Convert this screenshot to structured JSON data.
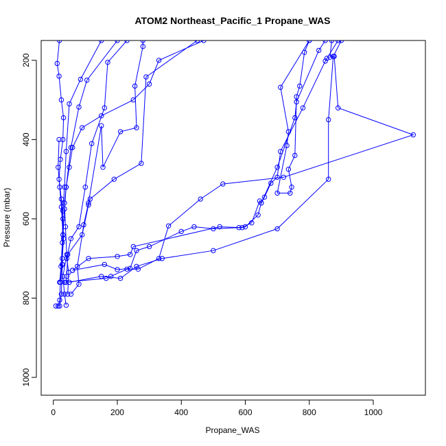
{
  "chart_data": {
    "type": "line",
    "title": "ATOM2 Northeast_Pacific_1 Propane_WAS",
    "xlabel": "Propane_WAS",
    "ylabel": "Pressure (mbar)",
    "xlim": [
      -38,
      1163
    ],
    "ylim": [
      1045,
      150
    ],
    "y_axis_inverted": true,
    "xticks": [
      0,
      200,
      400,
      600,
      800,
      1000
    ],
    "yticks": [
      200,
      400,
      600,
      800,
      1000
    ],
    "grid": false,
    "legend": "none",
    "color": "#0000ff",
    "marker": "open-circle",
    "series": [
      {
        "values": [
          [
            19,
            150
          ],
          [
            12,
            208
          ],
          [
            18,
            240
          ],
          [
            25,
            300
          ],
          [
            32,
            345
          ],
          [
            30,
            400
          ],
          [
            22,
            450
          ],
          [
            18,
            500
          ],
          [
            25,
            550
          ],
          [
            30,
            600
          ],
          [
            32,
            650
          ],
          [
            28,
            700
          ],
          [
            22,
            760
          ],
          [
            20,
            805
          ],
          [
            15,
            820
          ]
        ]
      },
      {
        "values": [
          [
            150,
            150
          ],
          [
            85,
            248
          ],
          [
            50,
            310
          ],
          [
            40,
            430
          ],
          [
            35,
            520
          ],
          [
            30,
            580
          ],
          [
            28,
            660
          ],
          [
            24,
            720
          ],
          [
            20,
            760
          ]
        ]
      },
      {
        "values": [
          [
            200,
            150
          ],
          [
            105,
            250
          ],
          [
            80,
            318
          ],
          [
            55,
            420
          ],
          [
            40,
            520
          ],
          [
            35,
            560
          ],
          [
            38,
            620
          ],
          [
            42,
            690
          ],
          [
            30,
            745
          ],
          [
            35,
            790
          ],
          [
            40,
            818
          ]
        ]
      },
      {
        "values": [
          [
            230,
            150
          ],
          [
            170,
            205
          ],
          [
            160,
            320
          ],
          [
            120,
            410
          ],
          [
            100,
            520
          ],
          [
            80,
            620
          ],
          [
            55,
            650
          ],
          [
            42,
            700
          ],
          [
            48,
            735
          ],
          [
            45,
            790
          ]
        ]
      },
      {
        "values": [
          [
            280,
            150
          ],
          [
            280,
            165
          ],
          [
            255,
            265
          ],
          [
            260,
            370
          ],
          [
            210,
            380
          ],
          [
            155,
            470
          ],
          [
            150,
            365
          ],
          [
            110,
            560
          ],
          [
            95,
            615
          ],
          [
            75,
            720
          ],
          [
            80,
            765
          ],
          [
            55,
            790
          ]
        ]
      },
      {
        "values": [
          [
            450,
            150
          ],
          [
            290,
            242
          ],
          [
            275,
            460
          ],
          [
            190,
            500
          ],
          [
            115,
            550
          ],
          [
            110,
            565
          ],
          [
            90,
            640
          ],
          [
            45,
            690
          ],
          [
            42,
            745
          ],
          [
            40,
            760
          ]
        ]
      },
      {
        "values": [
          [
            470,
            150
          ],
          [
            330,
            200
          ],
          [
            300,
            260
          ],
          [
            250,
            300
          ],
          [
            150,
            340
          ],
          [
            90,
            370
          ],
          [
            60,
            420
          ],
          [
            50,
            470
          ],
          [
            40,
            520
          ],
          [
            35,
            575
          ],
          [
            30,
            640
          ],
          [
            28,
            715
          ],
          [
            20,
            760
          ]
        ]
      },
      {
        "values": [
          [
            800,
            150
          ],
          [
            710,
            268
          ],
          [
            735,
            380
          ],
          [
            730,
            415
          ],
          [
            700,
            535
          ],
          [
            740,
            535
          ],
          [
            745,
            520
          ],
          [
            735,
            475
          ],
          [
            755,
            440
          ],
          [
            760,
            292
          ],
          [
            770,
            265
          ],
          [
            785,
            180
          ],
          [
            800,
            150
          ]
        ]
      },
      {
        "values": [
          [
            850,
            150
          ],
          [
            830,
            175
          ],
          [
            760,
            305
          ],
          [
            755,
            345
          ],
          [
            700,
            470
          ],
          [
            650,
            560
          ],
          [
            640,
            590
          ],
          [
            600,
            620
          ],
          [
            580,
            622
          ],
          [
            500,
            625
          ],
          [
            440,
            620
          ],
          [
            400,
            632
          ],
          [
            300,
            670
          ],
          [
            260,
            680
          ],
          [
            240,
            725
          ],
          [
            200,
            728
          ],
          [
            160,
            715
          ],
          [
            60,
            730
          ]
        ]
      },
      {
        "values": [
          [
            870,
            150
          ],
          [
            865,
            192
          ],
          [
            878,
            190
          ],
          [
            890,
            320
          ],
          [
            1125,
            388
          ],
          [
            720,
            495
          ],
          [
            530,
            512
          ],
          [
            460,
            550
          ],
          [
            360,
            618
          ],
          [
            330,
            700
          ],
          [
            265,
            727
          ],
          [
            230,
            727
          ],
          [
            180,
            745
          ],
          [
            165,
            750
          ],
          [
            35,
            760
          ]
        ]
      },
      {
        "values": [
          [
            890,
            150
          ],
          [
            855,
            195
          ],
          [
            850,
            202
          ],
          [
            780,
            320
          ],
          [
            710,
            430
          ],
          [
            700,
            495
          ],
          [
            680,
            510
          ],
          [
            660,
            545
          ],
          [
            650,
            560
          ],
          [
            645,
            555
          ],
          [
            620,
            610
          ],
          [
            590,
            622
          ],
          [
            520,
            620
          ],
          [
            250,
            670
          ],
          [
            240,
            690
          ],
          [
            200,
            695
          ],
          [
            110,
            700
          ],
          [
            60,
            730
          ]
        ]
      },
      {
        "values": [
          [
            900,
            150
          ],
          [
            875,
            190
          ],
          [
            860,
            350
          ],
          [
            860,
            500
          ],
          [
            700,
            625
          ],
          [
            500,
            680
          ],
          [
            340,
            700
          ],
          [
            260,
            720
          ],
          [
            210,
            750
          ],
          [
            150,
            745
          ],
          [
            50,
            760
          ]
        ]
      },
      {
        "values": [
          [
            18,
            400
          ],
          [
            15,
            470
          ],
          [
            20,
            520
          ],
          [
            25,
            570
          ],
          [
            30,
            640
          ],
          [
            28,
            715
          ],
          [
            25,
            790
          ],
          [
            20,
            820
          ],
          [
            8,
            820
          ]
        ]
      }
    ]
  }
}
